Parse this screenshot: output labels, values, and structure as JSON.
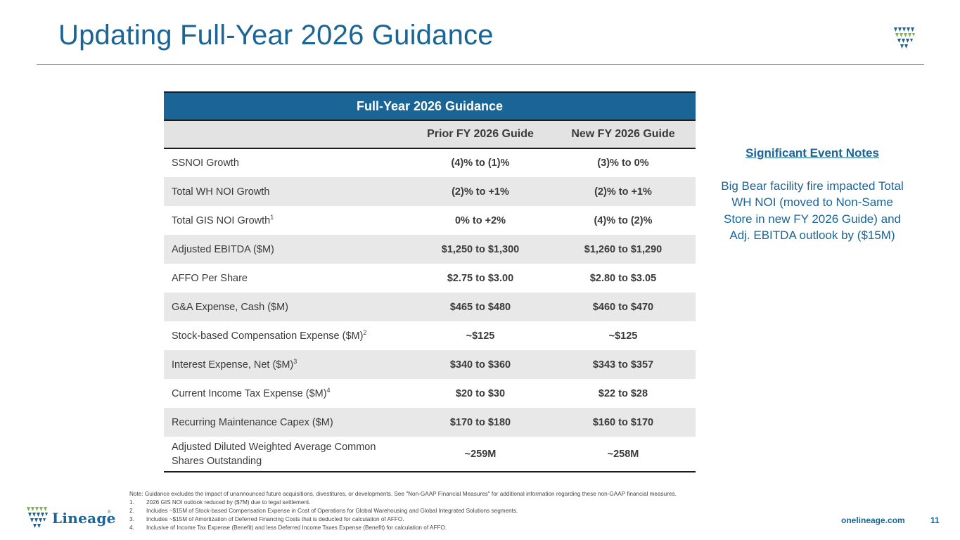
{
  "header": {
    "title": "Updating Full-Year 2026 Guidance"
  },
  "table": {
    "banner": "Full-Year 2026 Guidance",
    "columns": [
      "",
      "Prior FY 2026 Guide",
      "New FY 2026 Guide"
    ],
    "rows": [
      {
        "label": "SSNOI Growth",
        "sup": "",
        "prior": "(4)% to (1)%",
        "new": "(3)% to 0%"
      },
      {
        "label": "Total WH NOI Growth",
        "sup": "",
        "prior": "(2)% to +1%",
        "new": "(2)% to +1%"
      },
      {
        "label": "Total GIS NOI Growth",
        "sup": "1",
        "prior": "0% to +2%",
        "new": "(4)% to (2)%"
      },
      {
        "label": "Adjusted EBITDA ($M)",
        "sup": "",
        "prior": "$1,250 to $1,300",
        "new": "$1,260 to $1,290"
      },
      {
        "label": "AFFO Per Share",
        "sup": "",
        "prior": "$2.75 to $3.00",
        "new": "$2.80 to $3.05"
      },
      {
        "label": "G&A Expense, Cash ($M)",
        "sup": "",
        "prior": "$465 to $480",
        "new": "$460 to $470"
      },
      {
        "label": "Stock-based Compensation Expense ($M)",
        "sup": "2",
        "prior": "~$125",
        "new": "~$125"
      },
      {
        "label": "Interest Expense, Net ($M)",
        "sup": "3",
        "prior": "$340 to $360",
        "new": "$343 to $357"
      },
      {
        "label": "Current Income Tax Expense ($M)",
        "sup": "4",
        "prior": "$20 to $30",
        "new": "$22 to $28"
      },
      {
        "label": "Recurring Maintenance Capex ($M)",
        "sup": "",
        "prior": "$170 to $180",
        "new": "$160 to $170"
      },
      {
        "label": "Adjusted Diluted Weighted Average Common Shares Outstanding",
        "sup": "",
        "prior": "~259M",
        "new": "~258M"
      }
    ]
  },
  "notes_panel": {
    "title": "Significant Event Notes",
    "body": "Big Bear facility fire impacted Total WH NOI (moved to Non-Same Store in new FY 2026 Guide) and Adj. EBITDA outlook by ($15M)"
  },
  "footnotes": {
    "note": "Note: Guidance excludes the impact of unannounced future acquisitions, divestitures, or developments.  See \"Non-GAAP Financial Measures\" for additional information regarding these non-GAAP financial measures.",
    "items": [
      {
        "num": "1.",
        "text": "2026 GIS NOI outlook reduced by ($7M) due to legal settlement."
      },
      {
        "num": "2.",
        "text": "Includes ~$15M of Stock-based Compensation Expense in Cost of Operations for Global Warehousing and Global Integrated Solutions segments."
      },
      {
        "num": "3.",
        "text": "Includes ~$15M of Amortization of Deferred Financing Costs that is deducted for calculation of AFFO."
      },
      {
        "num": "4.",
        "text": "Inclusive of Income Tax Expense (Benefit) and less Deferred Income Taxes Expense (Benefit) for calculation of AFFO."
      }
    ]
  },
  "footer": {
    "brand": "Lineage",
    "registered_mark": "®",
    "website": "onelineage.com",
    "page_number": "11"
  },
  "colors": {
    "brand_blue": "#1a6496",
    "logo_green": "#7ab648",
    "row_alt": "#e8e8e8"
  },
  "icons": {
    "top_logo": "lineage-shield-logo-icon",
    "bottom_logo": "lineage-shield-logo-icon"
  }
}
